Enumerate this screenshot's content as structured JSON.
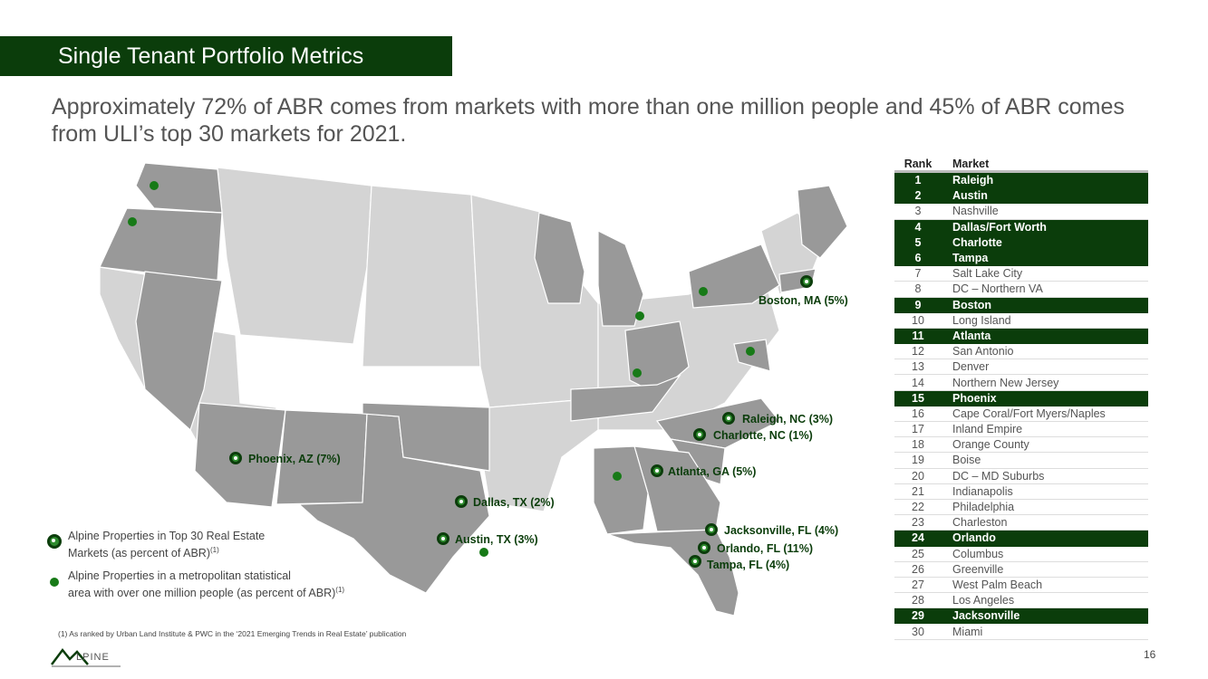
{
  "header": {
    "title": "Single Tenant Portfolio Metrics"
  },
  "subtitle": "Approximately 72% of ABR comes from markets with more than one million people and 45% of ABR comes from ULI’s top 30 markets for 2021.",
  "map": {
    "top30_markets": [
      {
        "label": "Boston, MA (5%)"
      },
      {
        "label": "Raleigh, NC (3%)"
      },
      {
        "label": "Charlotte, NC (1%)"
      },
      {
        "label": "Phoenix, AZ (7%)"
      },
      {
        "label": "Atlanta, GA (5%)"
      },
      {
        "label": "Dallas, TX (2%)"
      },
      {
        "label": "Jacksonville, FL (4%)"
      },
      {
        "label": "Austin, TX (3%)"
      },
      {
        "label": "Orlando, FL (11%)"
      },
      {
        "label": "Tampa, FL (4%)"
      }
    ],
    "colors": {
      "highlight_state": "#999999",
      "base_state": "#d4d4d4",
      "accent": "#0b3d0b",
      "dot": "#177a17"
    }
  },
  "legend": {
    "top30_line1": "Alpine Properties in Top 30 Real Estate",
    "top30_line2": "Markets (as percent of ABR)",
    "top30_sup": "(1)",
    "metro_line1": "Alpine Properties in a metropolitan statistical",
    "metro_line2": "area with over one million people (as percent of ABR)",
    "metro_sup": "(1)"
  },
  "rank_table": {
    "headers": [
      "Rank",
      "Market"
    ],
    "rows": [
      {
        "rank": "1",
        "market": "Raleigh",
        "highlighted": true
      },
      {
        "rank": "2",
        "market": "Austin",
        "highlighted": true
      },
      {
        "rank": "3",
        "market": "Nashville",
        "highlighted": false
      },
      {
        "rank": "4",
        "market": "Dallas/Fort Worth",
        "highlighted": true
      },
      {
        "rank": "5",
        "market": "Charlotte",
        "highlighted": true
      },
      {
        "rank": "6",
        "market": "Tampa",
        "highlighted": true
      },
      {
        "rank": "7",
        "market": "Salt Lake City",
        "highlighted": false
      },
      {
        "rank": "8",
        "market": "DC – Northern VA",
        "highlighted": false
      },
      {
        "rank": "9",
        "market": "Boston",
        "highlighted": true
      },
      {
        "rank": "10",
        "market": "Long Island",
        "highlighted": false
      },
      {
        "rank": "11",
        "market": "Atlanta",
        "highlighted": true
      },
      {
        "rank": "12",
        "market": "San Antonio",
        "highlighted": false
      },
      {
        "rank": "13",
        "market": "Denver",
        "highlighted": false
      },
      {
        "rank": "14",
        "market": "Northern New Jersey",
        "highlighted": false
      },
      {
        "rank": "15",
        "market": "Phoenix",
        "highlighted": true
      },
      {
        "rank": "16",
        "market": "Cape Coral/Fort Myers/Naples",
        "highlighted": false
      },
      {
        "rank": "17",
        "market": "Inland Empire",
        "highlighted": false
      },
      {
        "rank": "18",
        "market": "Orange County",
        "highlighted": false
      },
      {
        "rank": "19",
        "market": "Boise",
        "highlighted": false
      },
      {
        "rank": "20",
        "market": "DC – MD Suburbs",
        "highlighted": false
      },
      {
        "rank": "21",
        "market": "Indianapolis",
        "highlighted": false
      },
      {
        "rank": "22",
        "market": "Philadelphia",
        "highlighted": false
      },
      {
        "rank": "23",
        "market": "Charleston",
        "highlighted": false
      },
      {
        "rank": "24",
        "market": "Orlando",
        "highlighted": true
      },
      {
        "rank": "25",
        "market": "Columbus",
        "highlighted": false
      },
      {
        "rank": "26",
        "market": "Greenville",
        "highlighted": false
      },
      {
        "rank": "27",
        "market": "West Palm Beach",
        "highlighted": false
      },
      {
        "rank": "28",
        "market": "Los Angeles",
        "highlighted": false
      },
      {
        "rank": "29",
        "market": "Jacksonville",
        "highlighted": true
      },
      {
        "rank": "30",
        "market": "Miami",
        "highlighted": false
      }
    ]
  },
  "footnote": "(1)  As ranked by Urban Land Institute & PWC in the ‘2021 Emerging Trends in Real Estate’ publication",
  "logo": {
    "text": "LPINE"
  },
  "page_number": "16"
}
